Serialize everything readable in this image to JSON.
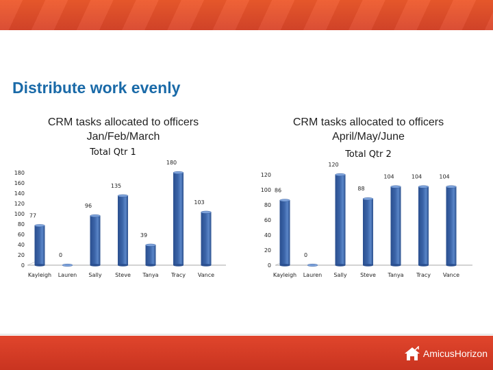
{
  "slide": {
    "title": "Distribute work evenly",
    "logo_text": "AmicusHorizon"
  },
  "colors": {
    "banner": "#e04a2a",
    "title": "#1a6aa8",
    "bar": "#3b64a8"
  },
  "charts": [
    {
      "heading_line1": "CRM tasks allocated to officers",
      "heading_line2": "Jan/Feb/March"
    },
    {
      "heading_line1": "CRM tasks allocated to officers",
      "heading_line2": "April/May/June"
    }
  ],
  "chart_data": [
    {
      "type": "bar",
      "title": "Total Qtr 1",
      "categories": [
        "Kayleigh",
        "Lauren",
        "Sally",
        "Steve",
        "Tanya",
        "Tracy",
        "Vance"
      ],
      "values": [
        77,
        0,
        96,
        135,
        39,
        180,
        103
      ],
      "ylim": [
        0,
        180
      ],
      "yticks": [
        0,
        20,
        40,
        60,
        80,
        100,
        120,
        140,
        160,
        180
      ],
      "grid": false,
      "bar_style": "3d-cylinder"
    },
    {
      "type": "bar",
      "title": "Total Qtr 2",
      "categories": [
        "Kayleigh",
        "Lauren",
        "Sally",
        "Steve",
        "Tanya",
        "Tracy",
        "Vance"
      ],
      "values": [
        86,
        0,
        120,
        88,
        104,
        104,
        104
      ],
      "ylim": [
        0,
        120
      ],
      "yticks": [
        0,
        20,
        40,
        60,
        80,
        100,
        120
      ],
      "grid": false,
      "bar_style": "3d-cylinder"
    }
  ]
}
